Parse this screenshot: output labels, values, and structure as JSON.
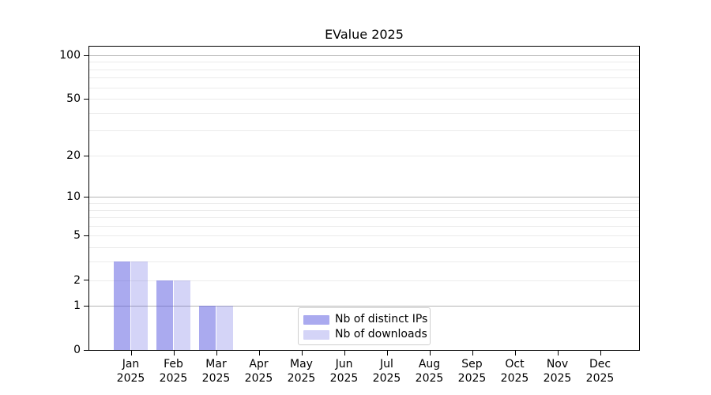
{
  "chart_data": {
    "type": "bar",
    "title": "EValue 2025",
    "categories": [
      "Jan 2025",
      "Feb 2025",
      "Mar 2025",
      "Apr 2025",
      "May 2025",
      "Jun 2025",
      "Jul 2025",
      "Aug 2025",
      "Sep 2025",
      "Oct 2025",
      "Nov 2025",
      "Dec 2025"
    ],
    "series": [
      {
        "name": "Nb of distinct IPs",
        "values": [
          3,
          2,
          1,
          0,
          0,
          0,
          0,
          0,
          0,
          0,
          0,
          0
        ],
        "color": "#5555e0",
        "fill_alpha": 0.5,
        "rendered_color": "#aaaaf0"
      },
      {
        "name": "Nb of downloads",
        "values": [
          3,
          2,
          1,
          0,
          0,
          0,
          0,
          0,
          0,
          0,
          0,
          0
        ],
        "color": "#5555e0",
        "fill_alpha": 0.25,
        "rendered_color": "#d8d8f8"
      }
    ],
    "xlabel": "",
    "ylabel": "",
    "y_scale": "log10(1+x)",
    "ylim": [
      0,
      115
    ],
    "y_tick_values": [
      100,
      50,
      20,
      10,
      5,
      2,
      1,
      0
    ],
    "y_tick_labels": [
      "100",
      "50",
      "20",
      "10",
      "5",
      "2",
      "1",
      "0"
    ],
    "y_major_gridlines": [
      1,
      10,
      100
    ],
    "y_minor_gridlines": [
      2,
      3,
      4,
      5,
      6,
      7,
      8,
      9,
      20,
      30,
      40,
      50,
      60,
      70,
      80,
      90
    ],
    "grid": true,
    "legend": {
      "position": "lower center",
      "items": [
        "Nb of distinct IPs",
        "Nb of downloads"
      ]
    },
    "colors": {
      "background": "#ffffff",
      "spine": "#000000",
      "text": "#000000",
      "major_grid": "#b4b4b4",
      "minor_grid": "#ebebeb",
      "legend_border": "#cfcfcf"
    }
  }
}
